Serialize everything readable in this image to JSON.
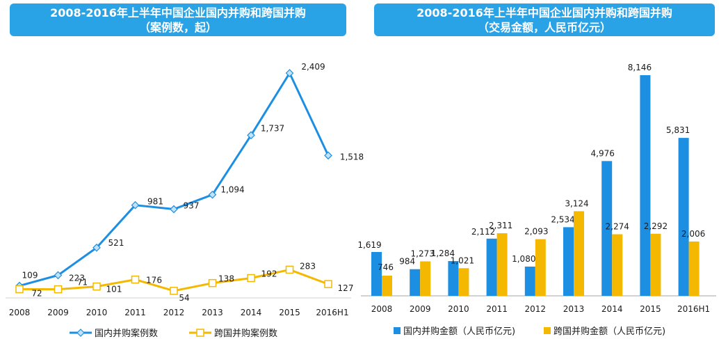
{
  "chart_data": [
    {
      "type": "line",
      "title": "2008-2016年上半年中国企业国内并购和跨国并购",
      "subtitle": "（案例数，起）",
      "categories": [
        "2008",
        "2009",
        "2010",
        "2011",
        "2012",
        "2013",
        "2014",
        "2015",
        "2016H1"
      ],
      "series": [
        {
          "name": "国内并购案例数",
          "values": [
            109,
            223,
            521,
            981,
            937,
            1094,
            1737,
            2409,
            1518
          ],
          "labels": [
            "109",
            "223",
            "521",
            "981",
            "937",
            "1,094",
            "1,737",
            "2,409",
            "1,518"
          ]
        },
        {
          "name": "跨国并购案例数",
          "values": [
            72,
            71,
            101,
            176,
            54,
            138,
            192,
            283,
            127
          ],
          "labels": [
            "72",
            "71",
            "101",
            "176",
            "54",
            "138",
            "192",
            "283",
            "127"
          ]
        }
      ],
      "ylim": [
        0,
        2700
      ],
      "legend": "bottom",
      "grid": false,
      "colors": [
        "#1c8fe3",
        "#f5b800"
      ]
    },
    {
      "type": "bar",
      "title": "2008-2016年上半年中国企业国内并购和跨国并购",
      "subtitle": "（交易金额，人民币亿元）",
      "categories": [
        "2008",
        "2009",
        "2010",
        "2011",
        "2012",
        "2013",
        "2014",
        "2015",
        "2016H1"
      ],
      "series": [
        {
          "name": "国内并购金额（人民币亿元)",
          "values": [
            1619,
            984,
            1284,
            2112,
            1080,
            2534,
            4976,
            8146,
            5831
          ],
          "labels": [
            "1,619",
            "984",
            "1,284",
            "2,112",
            "1,080",
            "2,534",
            "4,976",
            "8,146",
            "5,831"
          ]
        },
        {
          "name": "跨国并购金额（人民币亿元)",
          "values": [
            746,
            1273,
            1021,
            2311,
            2093,
            3124,
            2274,
            2292,
            2006
          ],
          "labels": [
            "746",
            "1,273",
            "1,021",
            "2,311",
            "2,093",
            "3,124",
            "2,274",
            "2,292",
            "2,006"
          ]
        }
      ],
      "ylim": [
        0,
        8500
      ],
      "legend": "bottom",
      "grid": false,
      "colors": [
        "#1c8fe3",
        "#f5b800"
      ]
    }
  ]
}
